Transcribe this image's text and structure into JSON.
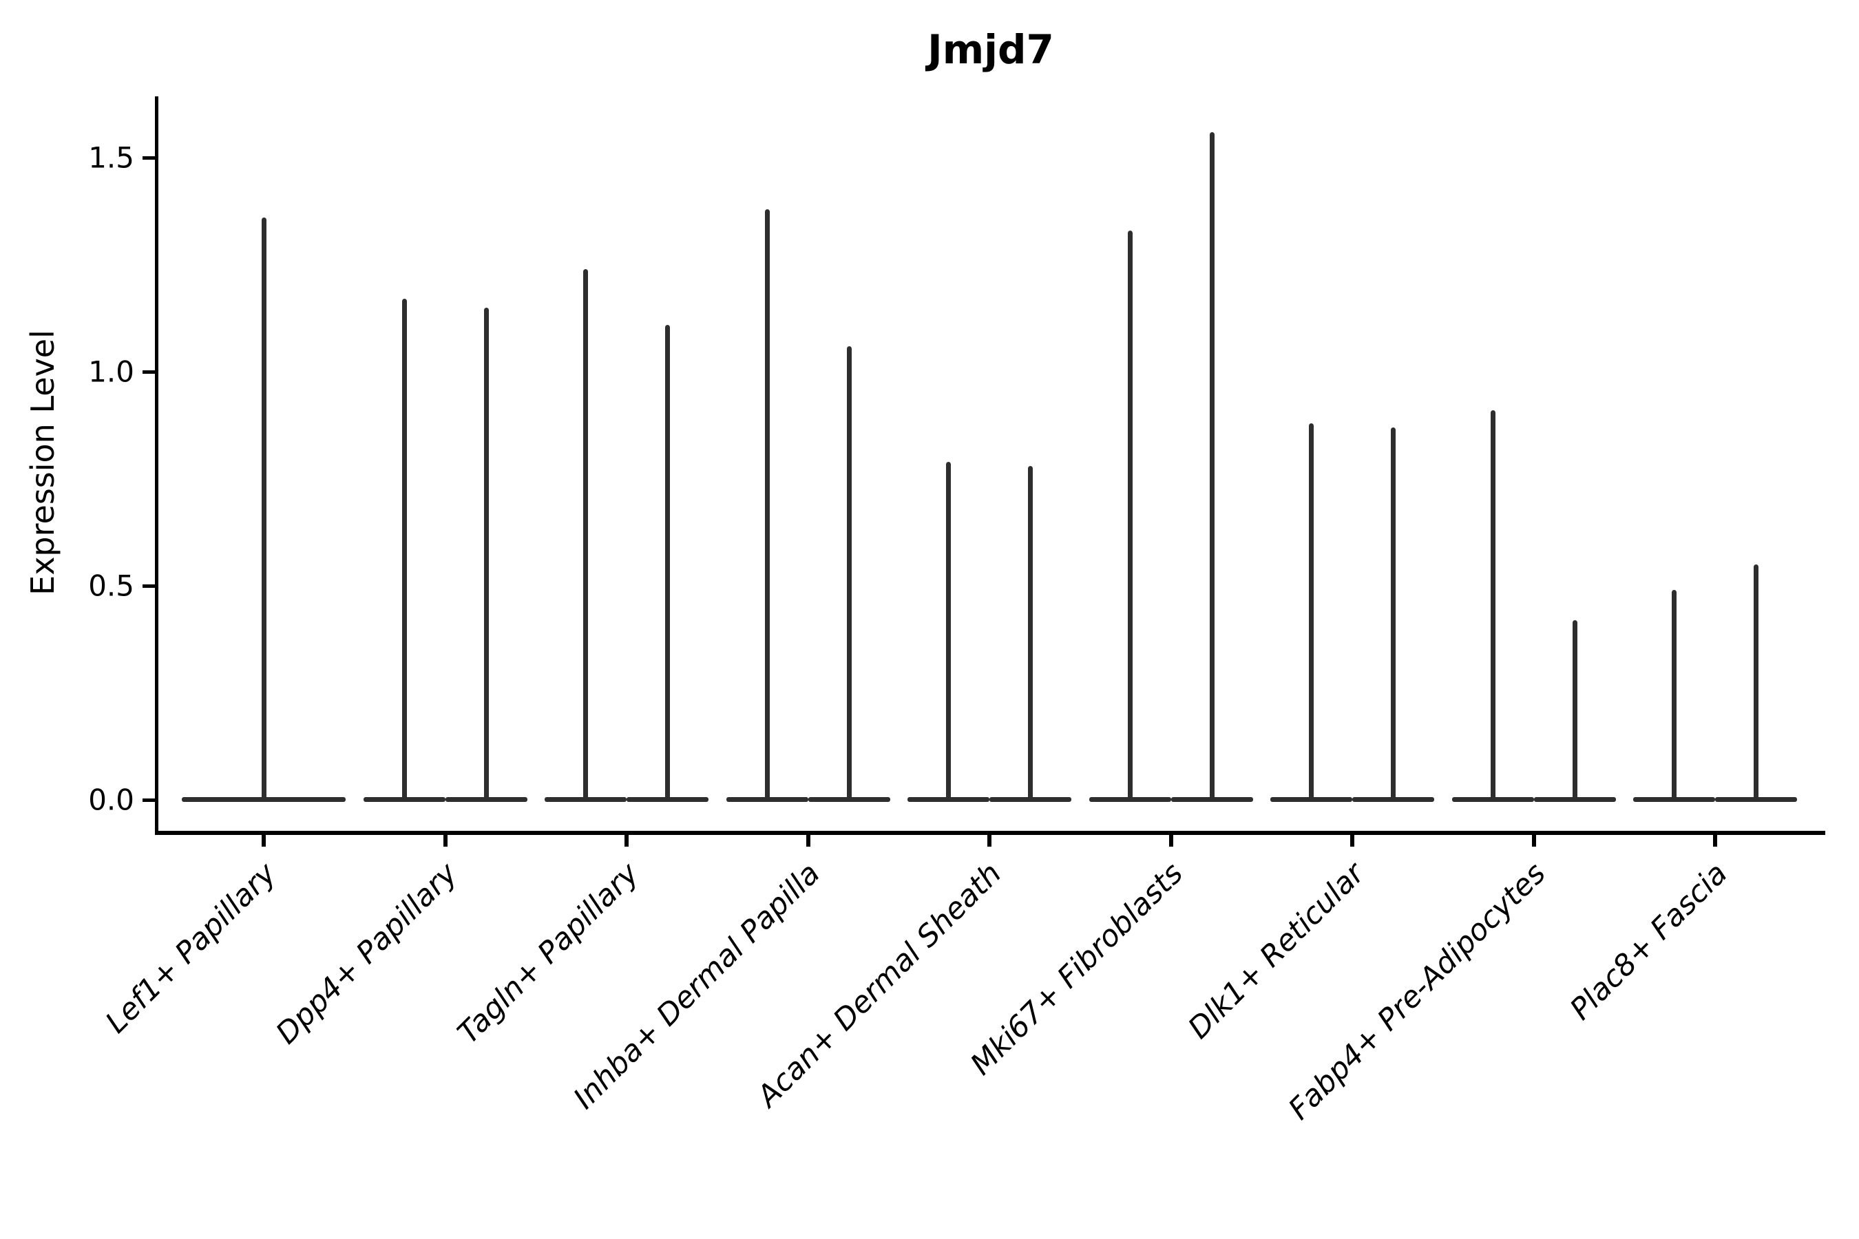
{
  "page_title": "Jmjd7",
  "colors": {
    "background": "#ffffff",
    "axis": "#000000",
    "text": "#000000",
    "violin": "#2e2e2e"
  },
  "chart_data": {
    "type": "violin",
    "title": "Jmjd7",
    "ylabel": "Expression Level",
    "xlabel": "",
    "ylim": [
      -0.08,
      1.64
    ],
    "grid": false,
    "legend": false,
    "yticklabels": [
      "0.0",
      "0.5",
      "1.0",
      "1.5"
    ],
    "ytick_values": [
      0.0,
      0.5,
      1.0,
      1.5
    ],
    "categories": [
      "Lef1+ Papillary",
      "Dpp4+ Papillary",
      "Tagln+ Papillary",
      "Inhba+ Dermal Papilla",
      "Acan+ Dermal Sheath",
      "Mki67+ Fibroblasts",
      "Dlk1+ Reticular",
      "Fabp4+ Pre-Adipocytes",
      "Plac8+ Fascia"
    ],
    "series": [
      {
        "category": "Lef1+ Papillary",
        "violin_max_values": [
          1.36
        ]
      },
      {
        "category": "Dpp4+ Papillary",
        "violin_max_values": [
          1.17,
          1.15
        ]
      },
      {
        "category": "Tagln+ Papillary",
        "violin_max_values": [
          1.24,
          1.11
        ]
      },
      {
        "category": "Inhba+ Dermal Papilla",
        "violin_max_values": [
          1.38,
          1.06
        ]
      },
      {
        "category": "Acan+ Dermal Sheath",
        "violin_max_values": [
          0.79,
          0.78
        ]
      },
      {
        "category": "Mki67+ Fibroblasts",
        "violin_max_values": [
          1.33,
          1.56
        ]
      },
      {
        "category": "Dlk1+ Reticular",
        "violin_max_values": [
          0.88,
          0.87
        ]
      },
      {
        "category": "Fabp4+ Pre-Adipocytes",
        "violin_max_values": [
          0.91,
          0.42
        ]
      },
      {
        "category": "Plac8+ Fascia",
        "violin_max_values": [
          0.49,
          0.55
        ]
      }
    ],
    "violin_body_note": "each violin is a flat wide base at expression 0 with a thin central spike up to its max value"
  }
}
